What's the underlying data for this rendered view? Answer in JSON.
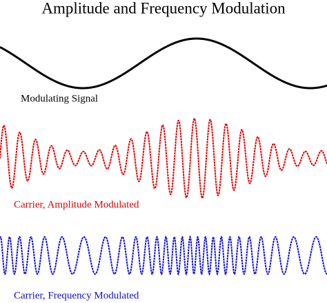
{
  "title": "Amplitude and Frequency Modulation",
  "signals": [
    {
      "label": "Modulating Signal"
    },
    {
      "label": "Carrier, Amplitude Modulated"
    },
    {
      "label": "Carrier, Frequency Modulated"
    }
  ]
}
